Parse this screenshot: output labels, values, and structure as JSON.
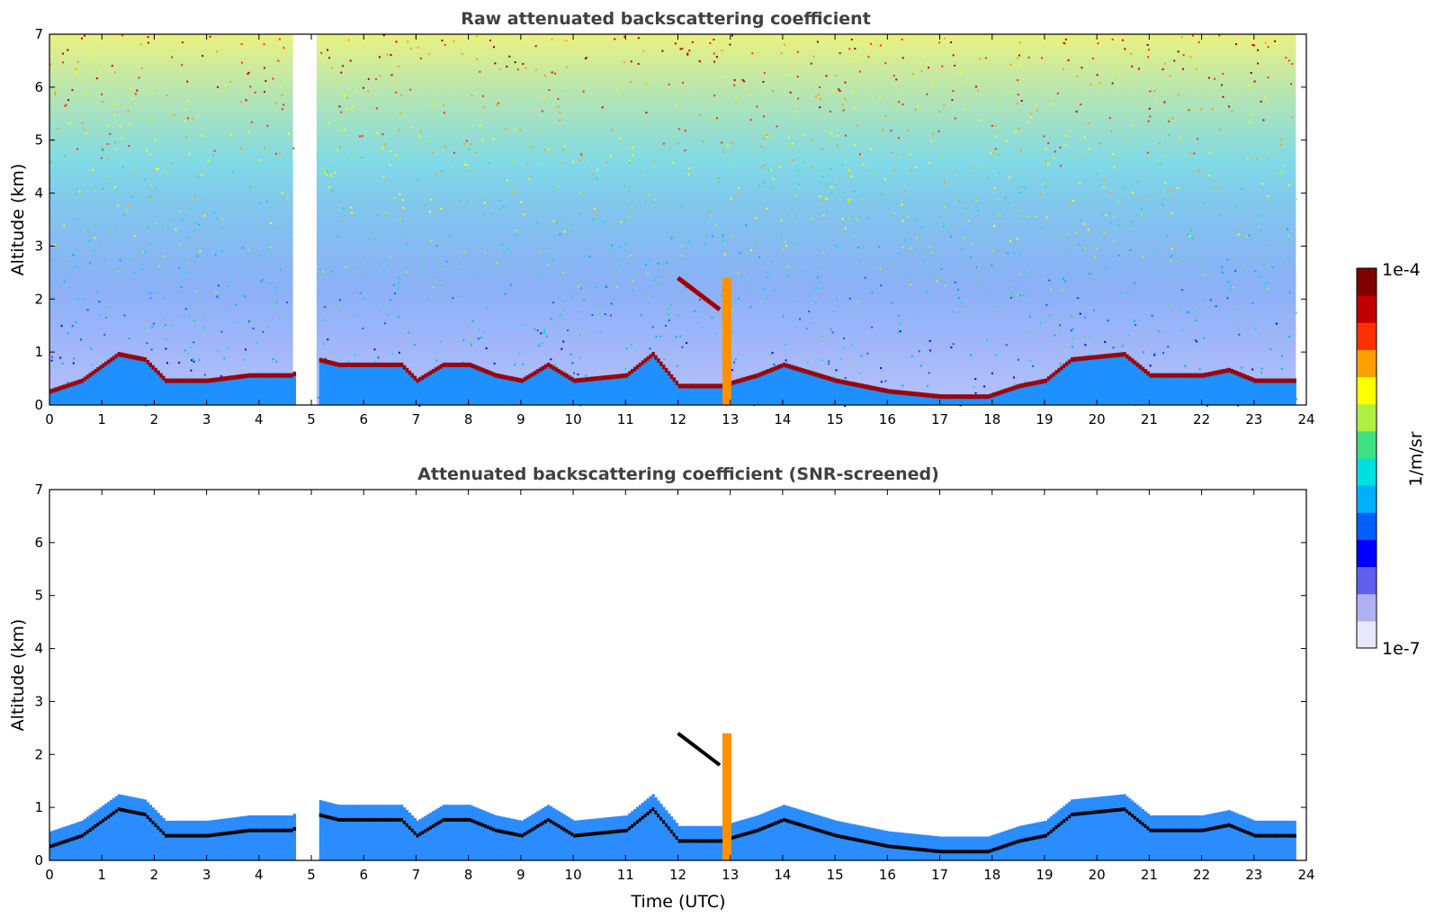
{
  "chart_data": [
    {
      "type": "heatmap",
      "title": "Raw attenuated backscattering coefficient",
      "xlabel": "",
      "ylabel": "Altitude (km)",
      "xlim": [
        0,
        24
      ],
      "ylim": [
        0,
        7
      ],
      "x_ticks": [
        "0",
        "1",
        "2",
        "3",
        "4",
        "5",
        "6",
        "7",
        "8",
        "9",
        "10",
        "11",
        "12",
        "13",
        "14",
        "15",
        "16",
        "17",
        "18",
        "19",
        "20",
        "21",
        "22",
        "23",
        "24"
      ],
      "y_ticks": [
        "0",
        "1",
        "2",
        "3",
        "4",
        "5",
        "6",
        "7"
      ],
      "data_gap_hours": [
        4.65,
        5.1
      ],
      "data_end_hour": 23.8,
      "boundary_layer_top_km": [
        [
          0,
          0.3
        ],
        [
          0.6,
          0.5
        ],
        [
          1.3,
          1.0
        ],
        [
          1.8,
          0.9
        ],
        [
          2.2,
          0.5
        ],
        [
          3,
          0.5
        ],
        [
          3.8,
          0.6
        ],
        [
          4.6,
          0.6
        ],
        [
          5.1,
          0.9
        ],
        [
          5.5,
          0.8
        ],
        [
          6.7,
          0.8
        ],
        [
          7,
          0.5
        ],
        [
          7.5,
          0.8
        ],
        [
          8,
          0.8
        ],
        [
          8.5,
          0.6
        ],
        [
          9,
          0.5
        ],
        [
          9.5,
          0.8
        ],
        [
          10,
          0.5
        ],
        [
          11,
          0.6
        ],
        [
          11.5,
          1.0
        ],
        [
          12,
          0.4
        ],
        [
          12.8,
          0.4
        ],
        [
          13.5,
          0.6
        ],
        [
          14,
          0.8
        ],
        [
          15,
          0.5
        ],
        [
          16,
          0.3
        ],
        [
          17,
          0.2
        ],
        [
          17.9,
          0.2
        ],
        [
          18.5,
          0.4
        ],
        [
          19,
          0.5
        ],
        [
          19.5,
          0.9
        ],
        [
          20.5,
          1.0
        ],
        [
          21,
          0.6
        ],
        [
          22,
          0.6
        ],
        [
          22.5,
          0.7
        ],
        [
          23,
          0.5
        ],
        [
          23.8,
          0.5
        ]
      ],
      "cloud_features": [
        {
          "hour_start": 12.0,
          "hour_end": 12.8,
          "alt_start_km": 2.4,
          "alt_end_km": 1.8
        }
      ]
    },
    {
      "type": "heatmap",
      "title": "Attenuated backscattering coefficient (SNR-screened)",
      "xlabel": "Time (UTC)",
      "ylabel": "Altitude (km)",
      "xlim": [
        0,
        24
      ],
      "ylim": [
        0,
        7
      ],
      "x_ticks": [
        "0",
        "1",
        "2",
        "3",
        "4",
        "5",
        "6",
        "7",
        "8",
        "9",
        "10",
        "11",
        "12",
        "13",
        "14",
        "15",
        "16",
        "17",
        "18",
        "19",
        "20",
        "21",
        "22",
        "23",
        "24"
      ],
      "y_ticks": [
        "0",
        "1",
        "2",
        "3",
        "4",
        "5",
        "6",
        "7"
      ]
    }
  ],
  "colorbar": {
    "label": "1/m/sr",
    "max_label": "1e-4",
    "min_label": "1e-7",
    "colors": [
      "#e8e8fa",
      "#b0b0f5",
      "#6060f0",
      "#0000ff",
      "#0060ff",
      "#00b0ff",
      "#00e0e0",
      "#40e080",
      "#b0f040",
      "#ffff00",
      "#ffa000",
      "#ff3000",
      "#c00000",
      "#800000"
    ]
  }
}
